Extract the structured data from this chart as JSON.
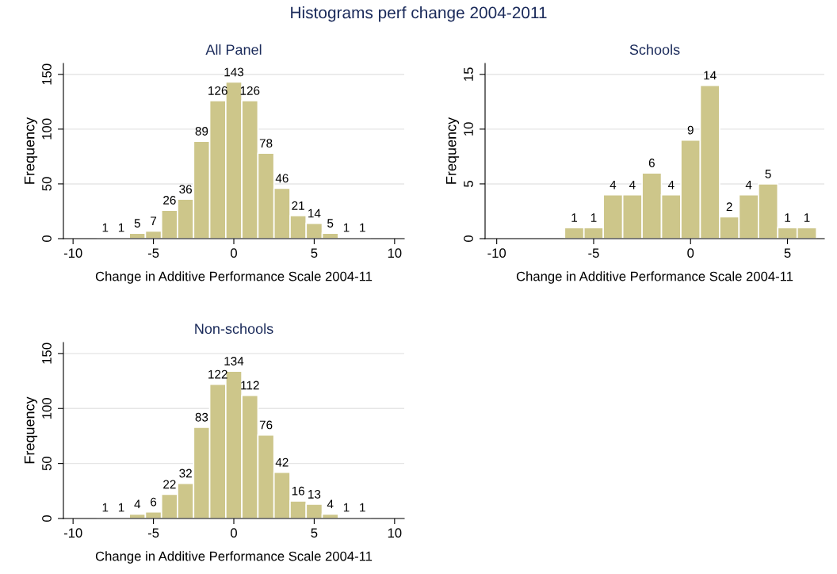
{
  "chart_data": [
    {
      "type": "histogram",
      "title": "Histograms perf change 2004-2011",
      "subtitle": "All Panel",
      "xlabel": "Change in Additive Performance Scale 2004-11",
      "ylabel": "Frequency",
      "bins": [
        -8.5,
        -7.5,
        -6.5,
        -5.5,
        -4.5,
        -3.5,
        -2.5,
        -1.5,
        -0.5,
        0.5,
        1.5,
        2.5,
        3.5,
        4.5,
        5.5,
        6.5,
        7.5,
        8.5
      ],
      "values": [
        1,
        1,
        5,
        7,
        26,
        36,
        89,
        126,
        143,
        126,
        78,
        46,
        21,
        14,
        5,
        1,
        1
      ],
      "color": "#cdc68a",
      "xlim": [
        -10.6,
        10.6
      ],
      "xticks": [
        -10,
        -5,
        0,
        5,
        10
      ],
      "ylim": [
        0,
        160
      ],
      "yticks": [
        0,
        50,
        100,
        150
      ],
      "grid": "y",
      "data_labels": true
    },
    {
      "type": "histogram",
      "subtitle": "Schools",
      "xlabel": "Change in Additive Performance Scale 2004-11",
      "ylabel": "Frequency",
      "bins": [
        -6.5,
        -5.5,
        -4.5,
        -3.5,
        -2.5,
        -1.5,
        -0.5,
        0.5,
        1.5,
        2.5,
        3.5,
        4.5,
        5.5,
        6.5
      ],
      "values": [
        1,
        1,
        4,
        4,
        6,
        4,
        9,
        14,
        2,
        4,
        5,
        1,
        1
      ],
      "color": "#cdc68a",
      "xlim": [
        -10.6,
        6.9
      ],
      "xticks": [
        -10,
        -5,
        0,
        5
      ],
      "ylim": [
        0,
        16
      ],
      "yticks": [
        0,
        5,
        10,
        15
      ],
      "grid": "y",
      "data_labels": true
    },
    {
      "type": "histogram",
      "subtitle": "Non-schools",
      "xlabel": "Change in Additive Performance Scale 2004-11",
      "ylabel": "Frequency",
      "bins": [
        -8.5,
        -7.5,
        -6.5,
        -5.5,
        -4.5,
        -3.5,
        -2.5,
        -1.5,
        -0.5,
        0.5,
        1.5,
        2.5,
        3.5,
        4.5,
        5.5,
        6.5,
        7.5,
        8.5
      ],
      "values": [
        1,
        1,
        4,
        6,
        22,
        32,
        83,
        122,
        134,
        112,
        76,
        42,
        16,
        13,
        4,
        1,
        1
      ],
      "color": "#cdc68a",
      "xlim": [
        -10.6,
        10.6
      ],
      "xticks": [
        -10,
        -5,
        0,
        5,
        10
      ],
      "ylim": [
        0,
        160
      ],
      "yticks": [
        0,
        50,
        100,
        150
      ],
      "grid": "y",
      "data_labels": true
    }
  ]
}
